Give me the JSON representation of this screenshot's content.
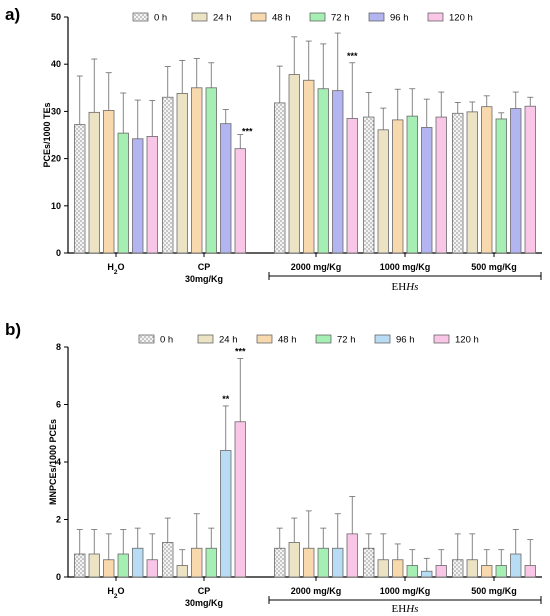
{
  "chart_data": [
    {
      "panel_label": "a)",
      "type": "bar",
      "ylabel": "PCEs/1000 TEs",
      "ylim": [
        0,
        50
      ],
      "yticks": [
        0,
        10,
        20,
        30,
        40,
        50
      ],
      "categories": [
        {
          "main": "H",
          "sub": "2",
          "rest": "O",
          "line2": ""
        },
        {
          "main": "CP",
          "sub": "",
          "rest": "",
          "line2": "30mg/Kg"
        },
        {
          "main": "2000 mg/Kg",
          "sub": "",
          "rest": "",
          "line2": ""
        },
        {
          "main": "1000 mg/Kg",
          "sub": "",
          "rest": "",
          "line2": ""
        },
        {
          "main": "500 mg/Kg",
          "sub": "",
          "rest": "",
          "line2": ""
        }
      ],
      "series": [
        {
          "name": "0 h",
          "color": "#f2f2f2",
          "pattern": true,
          "values": [
            27.2,
            33.0,
            31.8,
            28.8,
            29.6
          ],
          "errors": [
            10.3,
            6.5,
            7.8,
            5.2,
            2.3
          ]
        },
        {
          "name": "24 h",
          "color": "#ece3c4",
          "values": [
            29.8,
            33.8,
            37.8,
            26.1,
            29.9
          ],
          "errors": [
            11.3,
            7.0,
            8.0,
            4.6,
            2.1
          ]
        },
        {
          "name": "48 h",
          "color": "#f8d8ad",
          "values": [
            30.2,
            35.0,
            36.6,
            28.2,
            31.0
          ],
          "errors": [
            8.0,
            6.2,
            8.3,
            6.5,
            2.3
          ]
        },
        {
          "name": "72 h",
          "color": "#a6efb4",
          "values": [
            25.4,
            35.0,
            34.8,
            29.0,
            28.4
          ],
          "errors": [
            8.5,
            5.3,
            9.5,
            5.8,
            1.3
          ]
        },
        {
          "name": "96 h",
          "color": "#b3b5f1",
          "values": [
            24.2,
            27.4,
            34.4,
            26.6,
            30.6
          ],
          "errors": [
            8.2,
            3.0,
            12.2,
            6.0,
            3.5
          ]
        },
        {
          "name": "120 h",
          "color": "#f9c6e8",
          "values": [
            24.7,
            22.1,
            28.5,
            28.8,
            31.1
          ],
          "errors": [
            7.6,
            3.0,
            11.8,
            5.3,
            1.9
          ]
        }
      ],
      "annotations": [
        {
          "category": 1,
          "series": 5,
          "text": "***"
        },
        {
          "category": 2,
          "series": 5,
          "text": "***"
        }
      ],
      "legend_colors": {
        "48 h": "#2e7d32"
      },
      "group_label": "EHHs"
    },
    {
      "panel_label": "b)",
      "type": "bar",
      "ylabel": "MNPCEs/1000 PCEs",
      "ylim": [
        0,
        8
      ],
      "yticks": [
        0,
        2,
        4,
        6,
        8
      ],
      "categories": [
        {
          "main": "H",
          "sub": "2",
          "rest": "O",
          "line2": ""
        },
        {
          "main": "CP",
          "sub": "",
          "rest": "",
          "line2": "30mg/Kg"
        },
        {
          "main": "2000 mg/Kg",
          "sub": "",
          "rest": "",
          "line2": ""
        },
        {
          "main": "1000 mg/Kg",
          "sub": "",
          "rest": "",
          "line2": ""
        },
        {
          "main": "500 mg/Kg",
          "sub": "",
          "rest": "",
          "line2": ""
        }
      ],
      "series": [
        {
          "name": "0 h",
          "color": "#f2f2f2",
          "pattern": true,
          "values": [
            0.8,
            1.2,
            1.0,
            1.0,
            0.6
          ],
          "errors": [
            0.85,
            0.85,
            0.7,
            0.5,
            0.9
          ]
        },
        {
          "name": "24 h",
          "color": "#ece3c4",
          "values": [
            0.8,
            0.4,
            1.2,
            0.6,
            0.6
          ],
          "errors": [
            0.85,
            0.55,
            0.85,
            0.9,
            0.9
          ]
        },
        {
          "name": "48 h",
          "color": "#f8d8ad",
          "values": [
            0.6,
            1.0,
            1.0,
            0.6,
            0.4
          ],
          "errors": [
            0.9,
            1.2,
            1.3,
            0.55,
            0.55
          ]
        },
        {
          "name": "72 h",
          "color": "#a6efb4",
          "values": [
            0.8,
            1.0,
            1.0,
            0.4,
            0.4
          ],
          "errors": [
            0.85,
            0.7,
            0.7,
            0.55,
            0.55
          ]
        },
        {
          "name": "96 h",
          "color": "#b7dcf3",
          "values": [
            1.0,
            4.4,
            1.0,
            0.2,
            0.8
          ],
          "errors": [
            0.7,
            1.55,
            1.2,
            0.45,
            0.85
          ]
        },
        {
          "name": "120 h",
          "color": "#f9c6e8",
          "values": [
            0.6,
            5.4,
            1.5,
            0.4,
            0.4
          ],
          "errors": [
            0.9,
            2.2,
            1.3,
            0.55,
            0.9
          ]
        }
      ],
      "annotations": [
        {
          "category": 1,
          "series": 4,
          "text": "**"
        },
        {
          "category": 1,
          "series": 5,
          "text": "***"
        }
      ],
      "legend_colors": {},
      "group_label": "EHHs"
    }
  ]
}
